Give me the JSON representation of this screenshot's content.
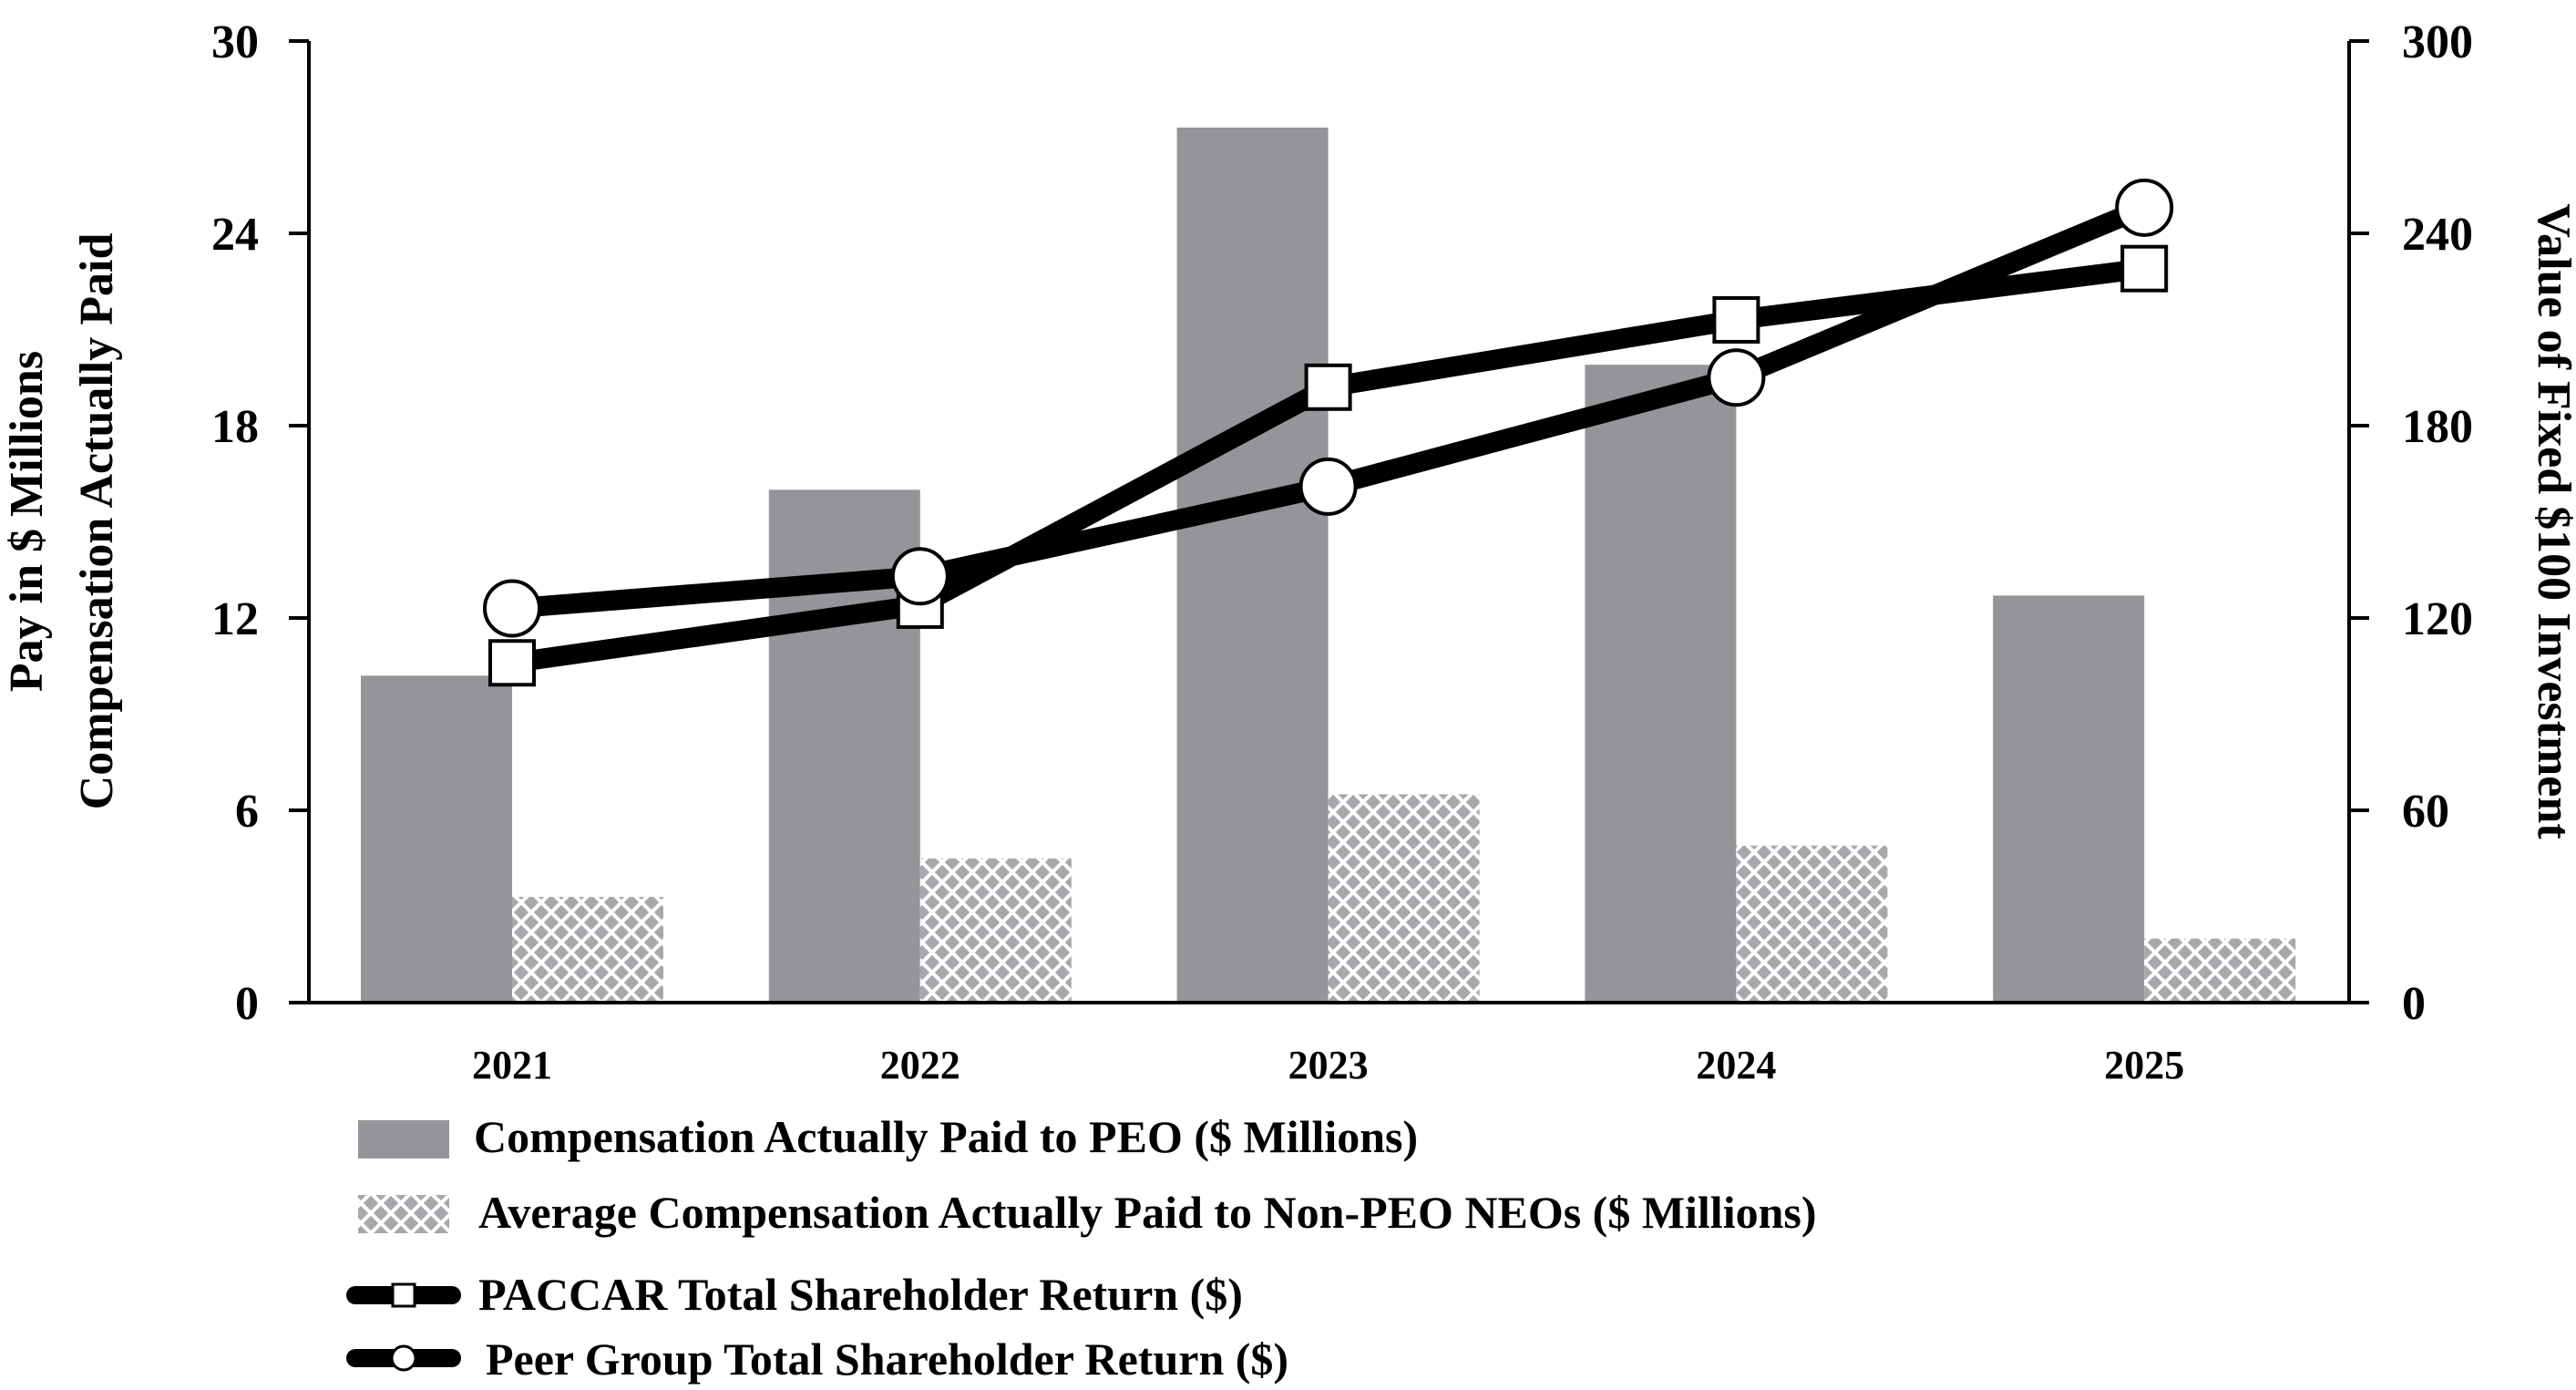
{
  "chart_data": {
    "type": "bar",
    "categories": [
      "2021",
      "2022",
      "2023",
      "2024",
      "2025"
    ],
    "left_axis": {
      "label_line1": "Pay in $ Millions",
      "label_line2": "Compensation Actually Paid",
      "ylim": [
        0,
        30
      ],
      "ticks": [
        "0",
        "6",
        "12",
        "18",
        "24",
        "30"
      ]
    },
    "right_axis": {
      "label": "Value of  Fixed $100 Investment",
      "ylim": [
        0,
        300
      ],
      "ticks": [
        "0",
        "60",
        "120",
        "180",
        "240",
        "300"
      ]
    },
    "series": [
      {
        "name": "Compensation Actually Paid to PEO ($ Millions)",
        "kind": "bar",
        "axis": "left",
        "color": "#939598",
        "values": [
          10.2,
          16.0,
          27.3,
          19.9,
          12.7
        ]
      },
      {
        "name": "Average Compensation Actually Paid to Non-PEO NEOs ($ Millions)",
        "kind": "bar",
        "axis": "left",
        "pattern": "crosshatch",
        "color": "#a6a8ab",
        "values": [
          3.3,
          4.5,
          6.5,
          4.9,
          2.0
        ]
      },
      {
        "name": "PACCAR Total Shareholder Return ($)",
        "kind": "line",
        "axis": "right",
        "marker": "square",
        "color": "#000000",
        "values": [
          106,
          124,
          192,
          213,
          229
        ]
      },
      {
        "name": "Peer Group Total Shareholder Return ($)",
        "kind": "line",
        "axis": "right",
        "marker": "circle",
        "color": "#000000",
        "values": [
          123,
          133,
          161,
          195,
          248
        ]
      }
    ]
  }
}
